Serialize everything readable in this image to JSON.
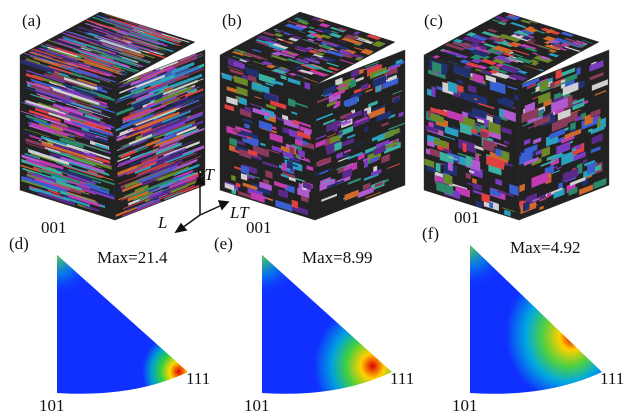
{
  "cubes": [
    {
      "label": "(a)"
    },
    {
      "label": "(b)"
    },
    {
      "label": "(c)"
    }
  ],
  "axes": {
    "st": "ST",
    "l": "L",
    "lt": "LT"
  },
  "pole_figures": [
    {
      "label": "(d)",
      "max": "Max=21.4",
      "top": "001",
      "left": "101",
      "right": "111"
    },
    {
      "label": "(e)",
      "max": "Max=8.99",
      "top": "001",
      "left": "101",
      "right": "111"
    },
    {
      "label": "(f)",
      "max": "Max=4.92",
      "top": "001",
      "left": "101",
      "right": "111"
    }
  ]
}
